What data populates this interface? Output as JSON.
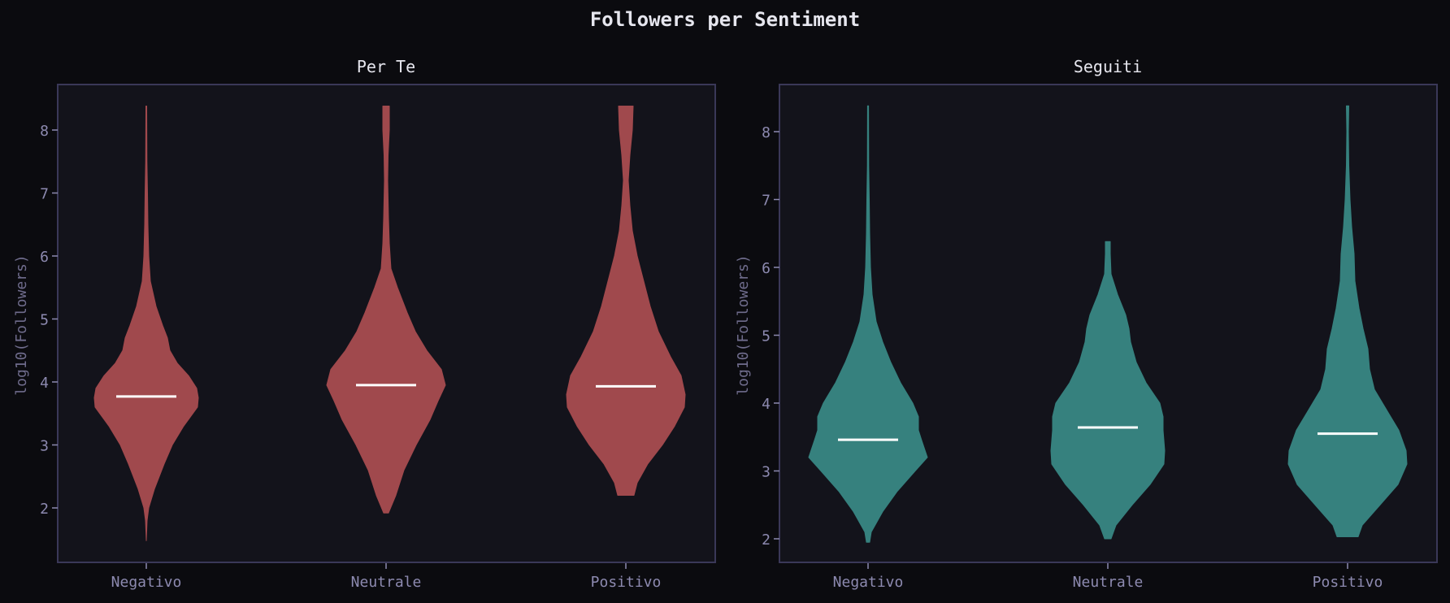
{
  "title": "Followers per Sentiment",
  "colors": {
    "background": "#0b0b0f",
    "axes_bg": "#13131b",
    "frame": "#3a3858",
    "tick": "#8d8ab0",
    "median": "#ffffff",
    "per_te": "#a0494d",
    "seguiti": "#36817e"
  },
  "chart_data": [
    {
      "type": "violin",
      "title": "Per Te",
      "xlabel": "",
      "ylabel": "log10(Followers)",
      "categories": [
        "Negativo",
        "Neutrale",
        "Positivo"
      ],
      "yticks": [
        2,
        3,
        4,
        5,
        6,
        7,
        8
      ],
      "ylim": [
        1.2,
        8.7
      ],
      "grid": false,
      "color": "#a0494d",
      "medians": [
        3.77,
        3.95,
        3.93
      ],
      "ranges": [
        [
          1.48,
          8.38
        ],
        [
          1.92,
          8.38
        ],
        [
          2.2,
          8.38
        ]
      ],
      "profiles": [
        [
          [
            1.48,
            0
          ],
          [
            1.8,
            1
          ],
          [
            2.0,
            3
          ],
          [
            2.3,
            10
          ],
          [
            2.7,
            22
          ],
          [
            3.0,
            32
          ],
          [
            3.3,
            46
          ],
          [
            3.6,
            63
          ],
          [
            3.75,
            64
          ],
          [
            3.9,
            62
          ],
          [
            4.1,
            52
          ],
          [
            4.3,
            38
          ],
          [
            4.5,
            29
          ],
          [
            4.7,
            26
          ],
          [
            4.9,
            20
          ],
          [
            5.2,
            12
          ],
          [
            5.6,
            5
          ],
          [
            6.0,
            3
          ],
          [
            6.5,
            2
          ],
          [
            7.0,
            1.5
          ],
          [
            7.5,
            0.8
          ],
          [
            8.38,
            0.5
          ]
        ],
        [
          [
            1.92,
            3
          ],
          [
            2.2,
            12
          ],
          [
            2.6,
            22
          ],
          [
            3.0,
            37
          ],
          [
            3.4,
            54
          ],
          [
            3.7,
            64
          ],
          [
            3.95,
            73
          ],
          [
            4.2,
            68
          ],
          [
            4.5,
            50
          ],
          [
            4.8,
            36
          ],
          [
            5.1,
            26
          ],
          [
            5.5,
            14
          ],
          [
            5.8,
            6
          ],
          [
            6.2,
            4
          ],
          [
            6.6,
            3
          ],
          [
            7.2,
            2
          ],
          [
            7.6,
            2.5
          ],
          [
            8.0,
            4
          ],
          [
            8.38,
            4
          ]
        ],
        [
          [
            2.2,
            10
          ],
          [
            2.4,
            14
          ],
          [
            2.7,
            27
          ],
          [
            3.0,
            45
          ],
          [
            3.3,
            60
          ],
          [
            3.6,
            72
          ],
          [
            3.8,
            73
          ],
          [
            4.1,
            68
          ],
          [
            4.4,
            55
          ],
          [
            4.8,
            40
          ],
          [
            5.2,
            30
          ],
          [
            5.6,
            22
          ],
          [
            6.0,
            14
          ],
          [
            6.4,
            8
          ],
          [
            6.8,
            5
          ],
          [
            7.2,
            3
          ],
          [
            7.6,
            5
          ],
          [
            8.0,
            8
          ],
          [
            8.38,
            9
          ]
        ]
      ]
    },
    {
      "type": "violin",
      "title": "Seguiti",
      "xlabel": "",
      "ylabel": "log10(Followers)",
      "categories": [
        "Negativo",
        "Neutrale",
        "Positivo"
      ],
      "yticks": [
        2,
        3,
        4,
        5,
        6,
        7,
        8
      ],
      "ylim": [
        1.7,
        8.7
      ],
      "grid": false,
      "color": "#36817e",
      "medians": [
        3.46,
        3.64,
        3.55
      ],
      "ranges": [
        [
          1.95,
          8.38
        ],
        [
          2.0,
          6.38
        ],
        [
          2.03,
          8.38
        ]
      ],
      "profiles": [
        [
          [
            1.95,
            2
          ],
          [
            2.1,
            4
          ],
          [
            2.4,
            18
          ],
          [
            2.7,
            36
          ],
          [
            3.0,
            58
          ],
          [
            3.2,
            73
          ],
          [
            3.45,
            66
          ],
          [
            3.6,
            62
          ],
          [
            3.8,
            62
          ],
          [
            4.0,
            55
          ],
          [
            4.3,
            40
          ],
          [
            4.6,
            28
          ],
          [
            4.9,
            18
          ],
          [
            5.2,
            10
          ],
          [
            5.6,
            5
          ],
          [
            6.0,
            3
          ],
          [
            6.5,
            2
          ],
          [
            7.0,
            1.5
          ],
          [
            7.5,
            0.8
          ],
          [
            8.38,
            0.6
          ]
        ],
        [
          [
            2.0,
            4
          ],
          [
            2.2,
            10
          ],
          [
            2.5,
            30
          ],
          [
            2.8,
            52
          ],
          [
            3.1,
            69
          ],
          [
            3.3,
            70
          ],
          [
            3.6,
            68
          ],
          [
            3.8,
            68
          ],
          [
            4.0,
            64
          ],
          [
            4.3,
            47
          ],
          [
            4.6,
            35
          ],
          [
            4.9,
            28
          ],
          [
            5.1,
            26
          ],
          [
            5.3,
            22
          ],
          [
            5.6,
            12
          ],
          [
            5.9,
            4
          ],
          [
            6.2,
            3
          ],
          [
            6.38,
            3
          ]
        ],
        [
          [
            2.03,
            13
          ],
          [
            2.2,
            18
          ],
          [
            2.5,
            40
          ],
          [
            2.8,
            62
          ],
          [
            3.1,
            73
          ],
          [
            3.3,
            72
          ],
          [
            3.6,
            63
          ],
          [
            3.9,
            48
          ],
          [
            4.2,
            33
          ],
          [
            4.5,
            27
          ],
          [
            4.8,
            25
          ],
          [
            5.1,
            19
          ],
          [
            5.4,
            14
          ],
          [
            5.8,
            9
          ],
          [
            6.2,
            8
          ],
          [
            6.6,
            5
          ],
          [
            7.0,
            3
          ],
          [
            7.5,
            1.5
          ],
          [
            8.0,
            1
          ],
          [
            8.38,
            1.5
          ]
        ]
      ]
    }
  ],
  "panels": [
    {
      "title": "Per Te",
      "ylabel": "log10(Followers)",
      "xticks": [
        "Negativo",
        "Neutrale",
        "Positivo"
      ],
      "yticks": [
        "2",
        "3",
        "4",
        "5",
        "6",
        "7",
        "8"
      ]
    },
    {
      "title": "Seguiti",
      "ylabel": "log10(Followers)",
      "xticks": [
        "Negativo",
        "Neutrale",
        "Positivo"
      ],
      "yticks": [
        "2",
        "3",
        "4",
        "5",
        "6",
        "7",
        "8"
      ]
    }
  ]
}
